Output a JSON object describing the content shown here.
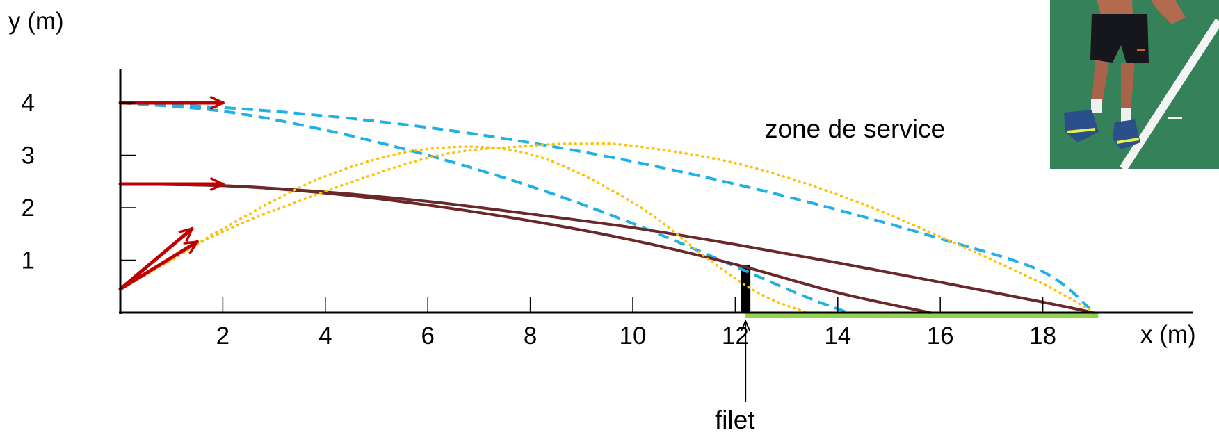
{
  "chart_data": {
    "type": "line",
    "title": "",
    "xlabel": "x (m)",
    "ylabel": "y (m)",
    "xlim": [
      0,
      19
    ],
    "ylim": [
      0,
      4.6
    ],
    "x_ticks": [
      2,
      4,
      6,
      8,
      10,
      12,
      14,
      16,
      18
    ],
    "y_ticks": [
      1,
      2,
      3,
      4
    ],
    "grid": false,
    "legend": "none",
    "annotations": {
      "zone_label": "zone de service",
      "net_label": "filet"
    },
    "net": {
      "x": 12.2,
      "height": 0.9,
      "color": "#000000"
    },
    "service_zone": {
      "x_start": 12.2,
      "x_end": 19.0,
      "color": "#92d050"
    },
    "photo": {
      "icon": "tennis-player-photo",
      "court_color": "#2f7a55",
      "line_color": "#ffffff"
    },
    "series": [
      {
        "style": "dashed",
        "color": "#1fb0e6",
        "x": [
          0,
          2,
          4,
          6,
          8,
          10,
          12,
          13.3,
          14.2
        ],
        "y": [
          4.0,
          3.84,
          3.48,
          3.0,
          2.41,
          1.7,
          0.88,
          0.33,
          0.0
        ]
      },
      {
        "style": "dashed",
        "color": "#1fb0e6",
        "x": [
          0,
          2,
          4,
          6,
          8,
          10,
          12,
          14,
          16,
          18,
          19.0
        ],
        "y": [
          4.0,
          3.91,
          3.75,
          3.53,
          3.24,
          2.88,
          2.45,
          1.96,
          1.41,
          0.78,
          0.0
        ]
      },
      {
        "style": "solid",
        "color": "#6b2828",
        "x": [
          0,
          2,
          4,
          6,
          8,
          10,
          12,
          14,
          15.8
        ],
        "y": [
          2.45,
          2.42,
          2.28,
          2.05,
          1.75,
          1.38,
          0.92,
          0.38,
          0.0
        ]
      },
      {
        "style": "solid",
        "color": "#6b2828",
        "x": [
          0,
          2,
          4,
          6,
          8,
          10,
          12,
          14,
          16,
          18,
          19.0
        ],
        "y": [
          2.45,
          2.42,
          2.3,
          2.12,
          1.88,
          1.62,
          1.3,
          0.95,
          0.58,
          0.2,
          0.0
        ]
      },
      {
        "style": "dotted",
        "color": "#ffc000",
        "x": [
          0,
          1,
          2,
          4,
          6,
          8,
          10,
          11.5,
          12.5,
          13.4
        ],
        "y": [
          0.45,
          1.0,
          1.6,
          2.6,
          3.12,
          3.02,
          2.1,
          1.0,
          0.35,
          0.0
        ]
      },
      {
        "style": "dotted",
        "color": "#ffc000",
        "x": [
          0,
          1.5,
          3,
          6,
          8,
          9,
          10,
          12,
          14,
          16,
          18,
          19.0
        ],
        "y": [
          0.45,
          1.3,
          1.95,
          2.95,
          3.18,
          3.22,
          3.18,
          2.85,
          2.25,
          1.45,
          0.55,
          0.0
        ]
      }
    ],
    "velocity_vectors": [
      {
        "color": "#c00000",
        "x0": 0,
        "y0": 4.0,
        "x1": 2.0,
        "y1": 4.0
      },
      {
        "color": "#c00000",
        "x0": 0,
        "y0": 2.45,
        "x1": 2.0,
        "y1": 2.45
      },
      {
        "color": "#c00000",
        "x0": 0,
        "y0": 0.45,
        "x1": 1.4,
        "y1": 1.6
      },
      {
        "color": "#c00000",
        "x0": 0,
        "y0": 0.45,
        "x1": 1.5,
        "y1": 1.35
      }
    ]
  }
}
